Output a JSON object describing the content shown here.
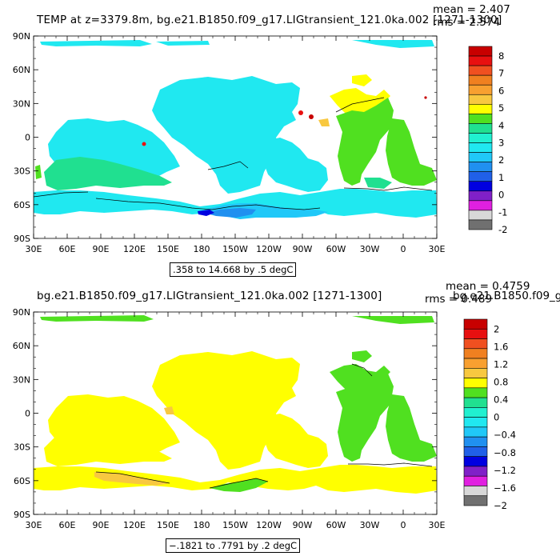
{
  "panel_top": {
    "title": "TEMP at z=3379.8m, bg.e21.B1850.f09_g17.LIGtransient_121.0ka.002 [1271-1300]",
    "mean": "mean = 2.407",
    "rms": "rms = 2.574",
    "range": ".358 to 14.668 by .5 degC",
    "colorbar": {
      "labels": [
        "8",
        "7",
        "6",
        "5",
        "4",
        "3",
        "2",
        "1",
        "0",
        "-1",
        "-2"
      ],
      "colors": [
        "#c80000",
        "#e81010",
        "#f05020",
        "#f08020",
        "#f8a030",
        "#f8c840",
        "#ffff00",
        "#50e020",
        "#20e090",
        "#20f0d0",
        "#20e8f0",
        "#20c8f8",
        "#2090f0",
        "#2060e8",
        "#0000e0",
        "#8020c8",
        "#e020e0",
        "#d8d8d8",
        "#707070"
      ]
    }
  },
  "panel_bottom": {
    "title": "bg.e21.B1850.f09_g17.LIGtransient_121.0ka.002 [1271-1300]",
    "mean": "mean = 0.4759",
    "rms": "rms = 0.489",
    "overlap_text": "bg.e21.B1850.f09_g",
    "range": "−.1821 to .7791 by .2 degC",
    "colorbar": {
      "labels": [
        "2",
        "1.6",
        "1.2",
        "0.8",
        "0.4",
        "0",
        "−0.4",
        "−0.8",
        "−1.2",
        "−1.6",
        "−2"
      ],
      "colors": [
        "#c80000",
        "#e81010",
        "#f05020",
        "#f08020",
        "#f8a030",
        "#f8c840",
        "#ffff00",
        "#50e020",
        "#20e090",
        "#20f0d0",
        "#20e8f0",
        "#20c8f8",
        "#2090f0",
        "#2060e8",
        "#0000e0",
        "#8020c8",
        "#e020e0",
        "#d8d8d8",
        "#707070"
      ]
    }
  },
  "axes": {
    "lat_labels": [
      "90N",
      "60N",
      "30N",
      "0",
      "30S",
      "60S",
      "90S"
    ],
    "lon_labels": [
      "30E",
      "60E",
      "90E",
      "120E",
      "150E",
      "180",
      "150W",
      "120W",
      "90W",
      "60W",
      "30W",
      "0",
      "30E"
    ]
  }
}
